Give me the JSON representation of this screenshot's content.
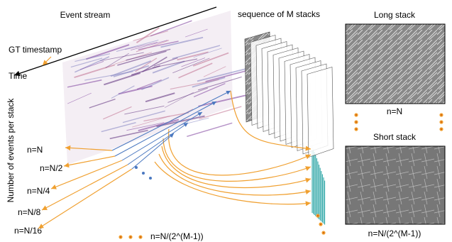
{
  "event_stream": {
    "title": "Event stream",
    "gt_label": "GT timestamp",
    "time_label": "Time",
    "axis_label": "Number of events per stack"
  },
  "stacks": {
    "title": "sequence of M stacks"
  },
  "long_stack": {
    "title": "Long stack",
    "label": "n=N"
  },
  "short_stack": {
    "title": "Short stack",
    "label": "n=N/(2^(M-1))"
  },
  "levels": [
    "n=N",
    "n=N/2",
    "n=N/4",
    "n=N/8",
    "n=N/16"
  ],
  "last_level": "n=N/(2^(M-1))"
}
